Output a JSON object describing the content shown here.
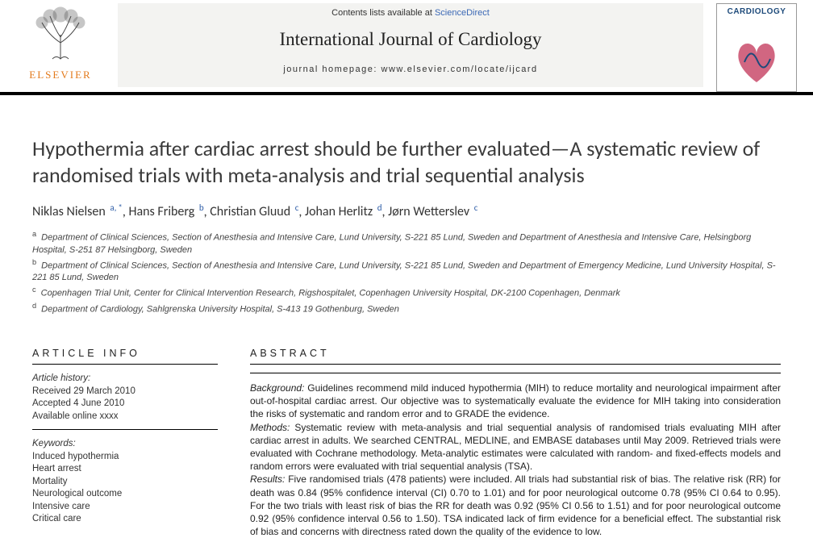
{
  "header": {
    "publisher_name": "ELSEVIER",
    "publisher_color": "#e37a1c",
    "contents_prefix": "Contents lists available at ",
    "contents_link": "ScienceDirect",
    "journal_title": "International Journal of Cardiology",
    "homepage_prefix": "journal homepage: ",
    "homepage_url": "www.elsevier.com/locate/ijcard",
    "cover_label": "CARDIOLOGY"
  },
  "article": {
    "title": "Hypothermia after cardiac arrest should be further evaluated—A systematic review of randomised trials with meta-analysis and trial sequential analysis",
    "authors": [
      {
        "name": "Niklas Nielsen",
        "affil": "a",
        "corr": true
      },
      {
        "name": "Hans Friberg",
        "affil": "b",
        "corr": false
      },
      {
        "name": "Christian Gluud",
        "affil": "c",
        "corr": false
      },
      {
        "name": "Johan Herlitz",
        "affil": "d",
        "corr": false
      },
      {
        "name": "Jørn Wetterslev",
        "affil": "c",
        "corr": false
      }
    ],
    "affiliations": [
      {
        "marker": "a",
        "text": "Department of Clinical Sciences, Section of Anesthesia and Intensive Care, Lund University, S-221 85 Lund, Sweden and Department of Anesthesia and Intensive Care, Helsingborg Hospital, S-251 87 Helsingborg, Sweden"
      },
      {
        "marker": "b",
        "text": "Department of Clinical Sciences, Section of Anesthesia and Intensive Care, Lund University, S-221 85 Lund, Sweden and Department of Emergency Medicine, Lund University Hospital, S-221 85 Lund, Sweden"
      },
      {
        "marker": "c",
        "text": "Copenhagen Trial Unit, Center for Clinical Intervention Research, Rigshospitalet, Copenhagen University Hospital, DK-2100 Copenhagen, Denmark"
      },
      {
        "marker": "d",
        "text": "Department of Cardiology, Sahlgrenska University Hospital, S-413 19 Gothenburg, Sweden"
      }
    ]
  },
  "info": {
    "section_title": "ARTICLE INFO",
    "history_label": "Article history:",
    "received": "Received 29 March 2010",
    "accepted": "Accepted 4 June 2010",
    "online": "Available online xxxx",
    "keywords_label": "Keywords:",
    "keywords": [
      "Induced hypothermia",
      "Heart arrest",
      "Mortality",
      "Neurological outcome",
      "Intensive care",
      "Critical care"
    ]
  },
  "abstract": {
    "section_title": "ABSTRACT",
    "bg_label": "Background:",
    "bg": " Guidelines recommend mild induced hypothermia (MIH) to reduce mortality and neurological impairment after out-of-hospital cardiac arrest. Our objective was to systematically evaluate the evidence for MIH taking into consideration the risks of systematic and random error and to GRADE the evidence.",
    "methods_label": "Methods:",
    "methods": " Systematic review with meta-analysis and trial sequential analysis of randomised trials evaluating MIH after cardiac arrest in adults. We searched CENTRAL, MEDLINE, and EMBASE databases until May 2009. Retrieved trials were evaluated with Cochrane methodology. Meta-analytic estimates were calculated with random- and fixed-effects models and random errors were evaluated with trial sequential analysis (TSA).",
    "results_label": "Results:",
    "results": " Five randomised trials (478 patients) were included. All trials had substantial risk of bias. The relative risk (RR) for death was 0.84 (95% confidence interval (CI) 0.70 to 1.01) and for poor neurological outcome 0.78 (95% CI 0.64 to 0.95). For the two trials with least risk of bias the RR for death was 0.92 (95% CI 0.56 to 1.51) and for poor neurological outcome 0.92 (95% confidence interval 0.56 to 1.50). TSA indicated lack of firm evidence for a beneficial effect. The substantial risk of bias and concerns with directness rated down the quality of the evidence to low."
  }
}
